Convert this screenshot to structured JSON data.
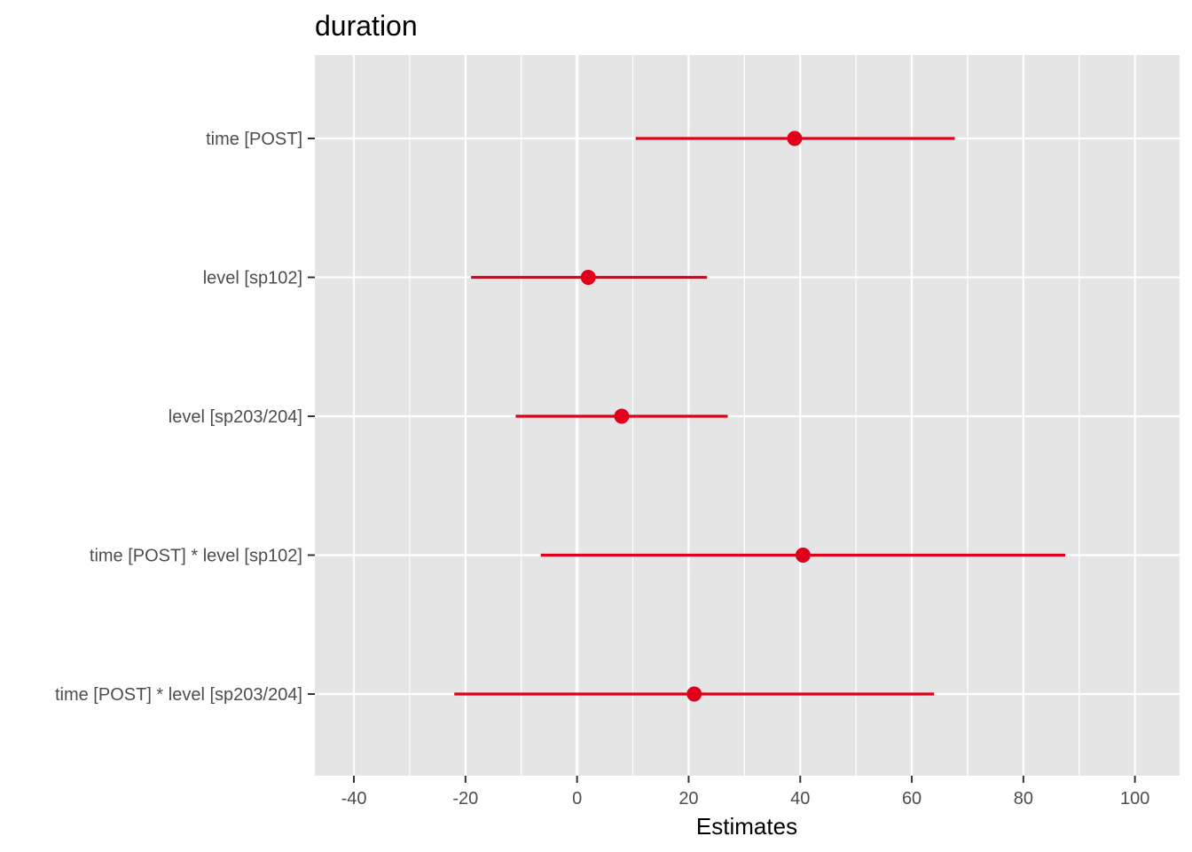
{
  "chart_data": {
    "type": "forest",
    "title": "duration",
    "xlabel": "Estimates",
    "ylabel": "",
    "xlim": [
      -47,
      108
    ],
    "x_ticks": [
      -40,
      -20,
      0,
      20,
      40,
      60,
      80,
      100
    ],
    "x_tick_labels": [
      "-40",
      "-20",
      "0",
      "20",
      "40",
      "60",
      "80",
      "100"
    ],
    "grid": true,
    "colors": {
      "panel": "#e5e5e5",
      "grid": "#ffffff",
      "estimate": "#e0001b",
      "axis_text": "#4d4d4d"
    },
    "terms": [
      {
        "label": "time [POST]",
        "estimate": 39,
        "conf_low": 10.5,
        "conf_high": 67.7
      },
      {
        "label": "level [sp102]",
        "estimate": 2,
        "conf_low": -19,
        "conf_high": 23.3
      },
      {
        "label": "level [sp203/204]",
        "estimate": 8,
        "conf_low": -11,
        "conf_high": 27
      },
      {
        "label": "time [POST] * level [sp102]",
        "estimate": 40.5,
        "conf_low": -6.5,
        "conf_high": 87.5
      },
      {
        "label": "time [POST] * level [sp203/204]",
        "estimate": 21,
        "conf_low": -22,
        "conf_high": 64
      }
    ]
  }
}
